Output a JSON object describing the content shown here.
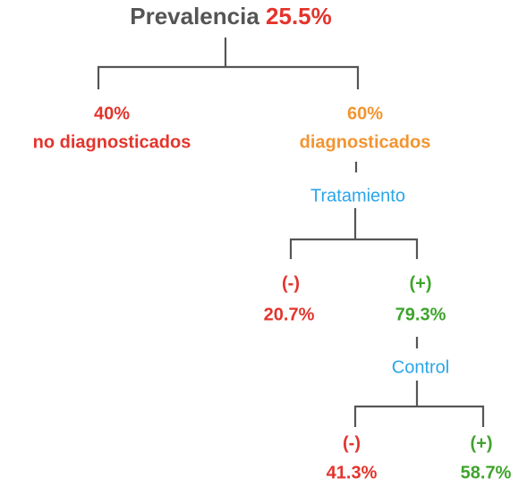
{
  "title": {
    "label": "Prevalencia",
    "value": "25.5%"
  },
  "nodes": [
    {
      "value": "40%",
      "label": "no diagnosticados"
    },
    {
      "value": "60%",
      "label": "diagnosticados"
    },
    {
      "label": "Tratamiento"
    },
    {
      "sign": "(-)",
      "value": "20.7%"
    },
    {
      "sign": "(+)",
      "value": "79.3%"
    },
    {
      "label": "Control"
    },
    {
      "sign": "(-)",
      "value": "41.3%"
    },
    {
      "sign": "(+)",
      "value": "58.7%"
    }
  ]
}
